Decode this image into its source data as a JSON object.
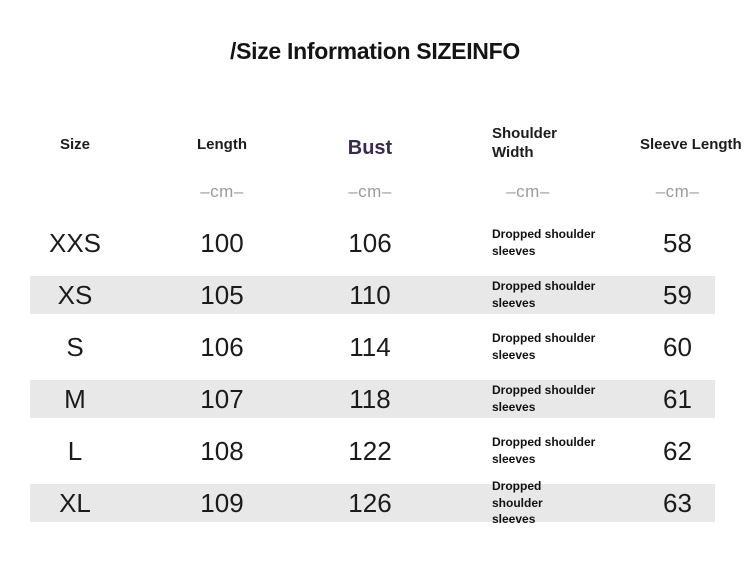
{
  "title": "/Size Information SIZEINFO",
  "colors": {
    "bust_header_accent": "#3a2a4d",
    "row_stripe": "#e8e8e8",
    "unit_text": "#9b9b9b",
    "text": "#1b1b1b"
  },
  "table": {
    "columns": [
      {
        "key": "size",
        "label": "Size",
        "unit": ""
      },
      {
        "key": "length",
        "label": "Length",
        "unit": "–cm–"
      },
      {
        "key": "bust",
        "label": "Bust",
        "unit": "–cm–"
      },
      {
        "key": "shoulder",
        "label": "Shoulder Width",
        "unit": "–cm–"
      },
      {
        "key": "sleeve",
        "label": "Sleeve Length",
        "unit": "–cm–"
      }
    ],
    "rows": [
      {
        "size": "XXS",
        "length": "100",
        "bust": "106",
        "shoulder": "Dropped shoulder sleeves",
        "sleeve": "58"
      },
      {
        "size": "XS",
        "length": "105",
        "bust": "110",
        "shoulder": "Dropped shoulder sleeves",
        "sleeve": "59"
      },
      {
        "size": "S",
        "length": "106",
        "bust": "114",
        "shoulder": "Dropped shoulder sleeves",
        "sleeve": "60"
      },
      {
        "size": "M",
        "length": "107",
        "bust": "118",
        "shoulder": "Dropped shoulder sleeves",
        "sleeve": "61"
      },
      {
        "size": "L",
        "length": "108",
        "bust": "122",
        "shoulder": "Dropped shoulder sleeves",
        "sleeve": "62"
      },
      {
        "size": "XL",
        "length": "109",
        "bust": "126",
        "shoulder": "Dropped shoulder sleeves",
        "sleeve": "63"
      }
    ]
  }
}
